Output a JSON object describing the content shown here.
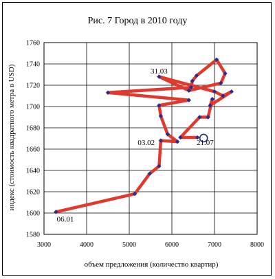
{
  "chart_data": {
    "type": "line",
    "title": "Рис. 7 Город в 2010 году",
    "xlabel": "объем предложения (количество квартир)",
    "ylabel": "индекс (стоимость квадратного метра в USD)",
    "xlim": [
      3000,
      8000
    ],
    "ylim": [
      1580,
      1760
    ],
    "xticks": [
      "3000",
      "4000",
      "5000",
      "6000",
      "7000",
      "8000"
    ],
    "yticks": [
      "1580",
      "1600",
      "1620",
      "1640",
      "1660",
      "1680",
      "1700",
      "1720",
      "1740",
      "1760"
    ],
    "grid": true,
    "series": [
      {
        "color": "#e03a2e",
        "marker_color": "#2c2c8a",
        "points": [
          [
            3280,
            1601
          ],
          [
            5130,
            1618
          ],
          [
            5480,
            1637
          ],
          [
            5700,
            1644
          ],
          [
            5740,
            1668
          ],
          [
            6130,
            1667
          ],
          [
            5900,
            1674
          ],
          [
            5740,
            1691
          ],
          [
            5700,
            1701
          ],
          [
            6400,
            1706
          ],
          [
            4500,
            1713
          ],
          [
            6450,
            1718
          ],
          [
            6480,
            1724
          ],
          [
            6580,
            1729
          ],
          [
            7050,
            1744
          ],
          [
            7250,
            1731
          ],
          [
            7150,
            1722
          ],
          [
            6400,
            1715
          ],
          [
            5700,
            1728
          ],
          [
            7000,
            1714
          ],
          [
            7200,
            1710
          ],
          [
            7400,
            1714
          ],
          [
            6900,
            1701
          ],
          [
            6950,
            1707
          ],
          [
            6850,
            1690
          ],
          [
            6650,
            1690
          ],
          [
            6200,
            1671
          ],
          [
            6600,
            1671
          ]
        ],
        "last_point_open": true
      }
    ],
    "annotations": [
      {
        "text": "31.03",
        "x": 5500,
        "y": 1731
      },
      {
        "text": "03.02",
        "x": 5200,
        "y": 1664
      },
      {
        "text": "21.07",
        "x": 6580,
        "y": 1664
      },
      {
        "text": "06.01",
        "x": 3300,
        "y": 1592
      }
    ]
  }
}
